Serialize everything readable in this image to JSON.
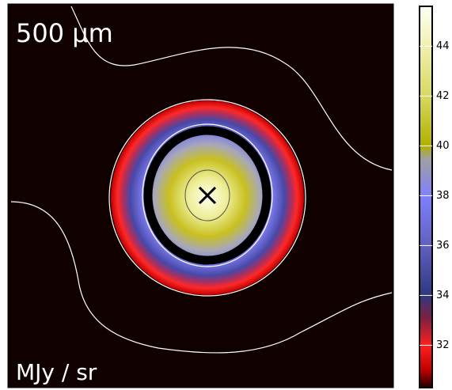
{
  "chart_data": {
    "type": "image",
    "title": "500 μm",
    "colorbar_label": "MJy / sr",
    "clim": [
      30.3,
      45.6
    ],
    "cticks": [
      32,
      34,
      36,
      38,
      40,
      42,
      44
    ]
  }
}
